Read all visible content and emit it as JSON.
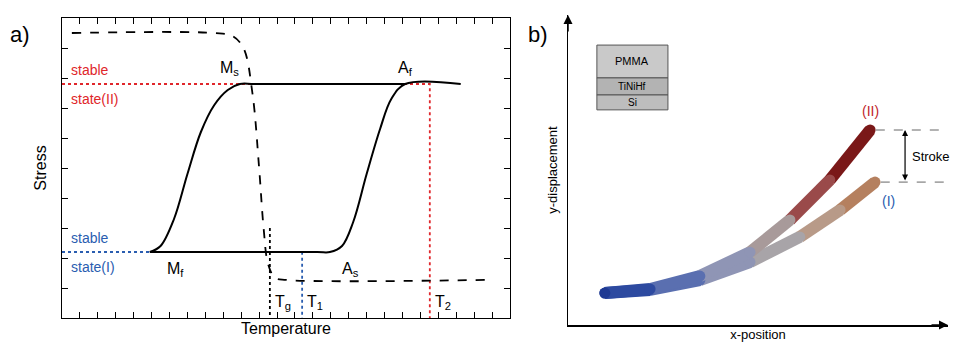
{
  "chart_data": [
    {
      "panel": "a)",
      "type": "line",
      "xlabel": "Temperature",
      "ylabel": "Stress",
      "xlim": [
        0,
        10
      ],
      "ylim": [
        0,
        10
      ],
      "xticks": [
        0,
        0.4,
        0.8,
        1.2,
        1.6,
        2,
        2.4,
        2.8,
        3.2,
        3.6,
        4,
        4.4,
        4.8,
        5.2,
        5.6,
        6,
        6.4,
        6.8,
        7.2,
        7.6,
        8,
        8.4,
        8.8,
        9.2,
        9.6,
        10
      ],
      "yticks": [
        0,
        1,
        2,
        3,
        4,
        5,
        6,
        7,
        8,
        9,
        10
      ],
      "tick_labels": false,
      "grid": false,
      "series": [
        {
          "color": "#e0262b",
          "line_style": "dotted",
          "x": [
            0,
            8.21,
            8.21
          ],
          "y": [
            7.8,
            7.8,
            0
          ]
        },
        {
          "color": "#2a5db0",
          "line_style": "dotted",
          "x": [
            0,
            5.36,
            5.36
          ],
          "y": [
            2.2,
            2.2,
            0
          ]
        },
        {
          "color": "#000000",
          "line_style": "dotted",
          "x": [
            4.64,
            4.64
          ],
          "y": [
            3.0,
            0
          ]
        },
        {
          "color": "#000000",
          "line_style": "solid",
          "x": [
            1.96,
            5.7,
            5.98,
            6.25,
            6.5,
            6.8,
            7.1,
            7.35,
            7.66,
            8.9,
            null,
            1.96,
            2.2,
            2.5,
            2.8,
            3.1,
            3.4,
            3.7,
            3.97,
            4.3,
            7.66
          ],
          "y": [
            2.2,
            2.2,
            2.2,
            2.4,
            3.2,
            4.8,
            6.3,
            7.3,
            7.8,
            7.8,
            null,
            2.2,
            2.4,
            3.3,
            4.8,
            6.2,
            7.1,
            7.6,
            7.8,
            7.8,
            7.8
          ]
        },
        {
          "color": "#000000",
          "line_style": "dashed",
          "x": [
            0.22,
            3.4,
            3.8,
            4.05,
            4.25,
            4.4,
            4.5,
            4.6,
            4.75,
            5.0,
            9.44
          ],
          "y": [
            9.5,
            9.5,
            9.4,
            9.0,
            7.5,
            5.0,
            3.0,
            1.8,
            1.35,
            1.27,
            1.27
          ]
        }
      ],
      "annotations": [
        {
          "text": "stable",
          "color": "#e0262b"
        },
        {
          "text": "state(II)",
          "color": "#e0262b"
        },
        {
          "text": "stable",
          "color": "#2a5db0"
        },
        {
          "text": "state(I)",
          "color": "#2a5db0"
        },
        {
          "text": "M",
          "sub": "s",
          "color": "#000000"
        },
        {
          "text": "A",
          "sub": "f",
          "color": "#000000"
        },
        {
          "text": "M",
          "sub": "f",
          "color": "#000000"
        },
        {
          "text": "A",
          "sub": "s",
          "color": "#000000"
        },
        {
          "text": "T",
          "sub": "g",
          "color": "#000000"
        },
        {
          "text": "T",
          "sub": "1",
          "color": "#000000"
        },
        {
          "text": "T",
          "sub": "2",
          "color": "#000000"
        }
      ]
    },
    {
      "panel": "b)",
      "type": "line",
      "xlabel": "x-position",
      "ylabel": "y-displacement",
      "xlim": [
        0,
        10
      ],
      "ylim": [
        0,
        10
      ],
      "tick_labels": false,
      "grid": false,
      "series": [
        {
          "label": "(I)",
          "label_color": "#2a5db0",
          "x": [
            0.97,
            2.16,
            3.47,
            4.79,
            6.1,
            7.16,
            8.08
          ],
          "y": [
            1.03,
            1.13,
            1.45,
            2.03,
            2.84,
            3.71,
            4.61
          ],
          "colors": [
            "#1f3a93",
            "#2d4aa0",
            "#5a6fb0",
            "#8f95b5",
            "#a8a4a8",
            "#b89a88",
            "#b5805f"
          ]
        },
        {
          "label": "(II)",
          "label_color": "#c0262b",
          "x": [
            0.97,
            2.16,
            3.47,
            4.79,
            5.84,
            6.89,
            7.95
          ],
          "y": [
            1.03,
            1.16,
            1.58,
            2.35,
            3.39,
            4.68,
            6.29
          ],
          "colors": [
            "#1f3a93",
            "#2d4aa0",
            "#5a6fb0",
            "#8f95b5",
            "#a89a9a",
            "#9a4a4a",
            "#7a1818"
          ]
        }
      ],
      "stroke_label": "Stroke",
      "inset_layers": [
        "PMMA",
        "TiNiHf",
        "Si"
      ]
    }
  ]
}
